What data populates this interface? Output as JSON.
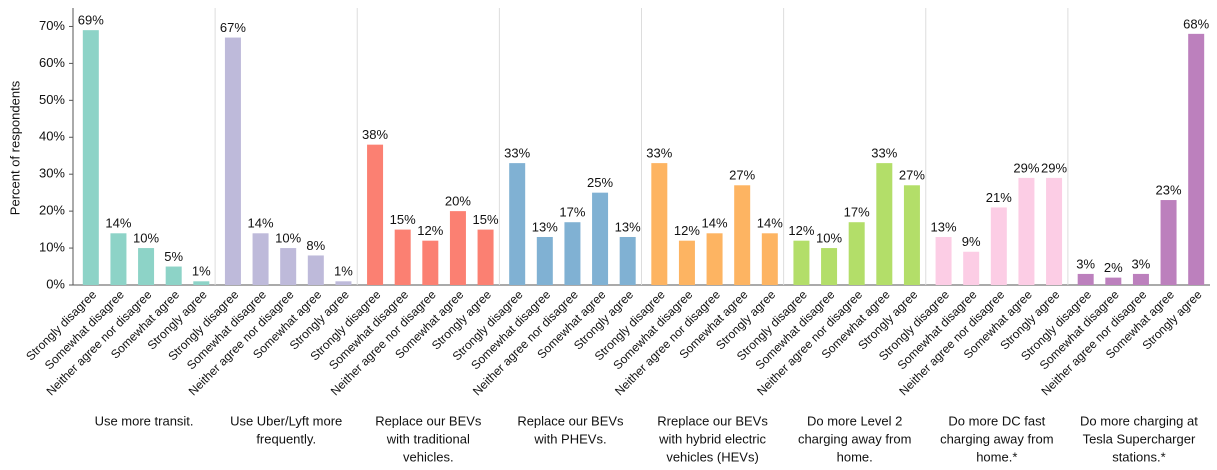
{
  "chart_data": {
    "type": "bar",
    "ylabel": "Percent of respondents",
    "ylim": [
      0,
      75
    ],
    "yticks": [
      {
        "value": 0,
        "label": "0%"
      },
      {
        "value": 10,
        "label": "10%"
      },
      {
        "value": 20,
        "label": "20%"
      },
      {
        "value": 30,
        "label": "30%"
      },
      {
        "value": 40,
        "label": "40%"
      },
      {
        "value": 50,
        "label": "50%"
      },
      {
        "value": 60,
        "label": "60%"
      },
      {
        "value": 70,
        "label": "70%"
      }
    ],
    "grid": false,
    "categories": [
      "Strongly disagree",
      "Somewhat disagree",
      "Neither agree nor disagree",
      "Somewhat agree",
      "Strongly agree"
    ],
    "groups": [
      {
        "label": [
          "Use more transit."
        ],
        "color": "#8dd3c7",
        "values": [
          69,
          14,
          10,
          5,
          1
        ],
        "value_labels": [
          "69%",
          "14%",
          "10%",
          "5%",
          "1%"
        ]
      },
      {
        "label": [
          "Use Uber/Lyft more",
          "frequently."
        ],
        "color": "#bebada",
        "values": [
          67,
          14,
          10,
          8,
          1
        ],
        "value_labels": [
          "67%",
          "14%",
          "10%",
          "8%",
          "1%"
        ]
      },
      {
        "label": [
          "Replace our BEVs",
          "with traditional",
          "vehicles."
        ],
        "color": "#fb8072",
        "values": [
          38,
          15,
          12,
          20,
          15
        ],
        "value_labels": [
          "38%",
          "15%",
          "12%",
          "20%",
          "15%"
        ]
      },
      {
        "label": [
          "Replace our BEVs",
          "with PHEVs."
        ],
        "color": "#80b1d3",
        "values": [
          33,
          13,
          17,
          25,
          13
        ],
        "value_labels": [
          "33%",
          "13%",
          "17%",
          "25%",
          "13%"
        ]
      },
      {
        "label": [
          "Rreplace our BEVs",
          "with hybrid electric",
          "vehicles (HEVs)"
        ],
        "color": "#fdb462",
        "values": [
          33,
          12,
          14,
          27,
          14
        ],
        "value_labels": [
          "33%",
          "12%",
          "14%",
          "27%",
          "14%"
        ]
      },
      {
        "label": [
          "Do more Level 2",
          "charging away from",
          "home."
        ],
        "color": "#b3de69",
        "values": [
          12,
          10,
          17,
          33,
          27
        ],
        "value_labels": [
          "12%",
          "10%",
          "17%",
          "33%",
          "27%"
        ]
      },
      {
        "label": [
          "Do more DC fast",
          "charging away from",
          "home.*"
        ],
        "color": "#fccde5",
        "values": [
          13,
          9,
          21,
          29,
          29
        ],
        "value_labels": [
          "13%",
          "9%",
          "21%",
          "29%",
          "29%"
        ]
      },
      {
        "label": [
          "Do more charging at",
          "Tesla Supercharger",
          "stations.*"
        ],
        "color": "#bc80bd",
        "values": [
          3,
          2,
          3,
          23,
          68
        ],
        "value_labels": [
          "3%",
          "2%",
          "3%",
          "23%",
          "68%"
        ]
      }
    ]
  }
}
